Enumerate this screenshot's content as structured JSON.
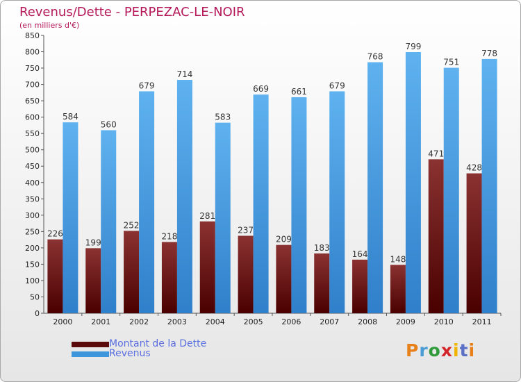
{
  "header": {
    "title": "Revenus/Dette - PERPEZAC-LE-NOIR",
    "subtitle": "(en milliers d'€)"
  },
  "legend": {
    "debt_label": "Montant de la Dette",
    "revenue_label": "Revenus"
  },
  "logo": {
    "text": "Proxiti",
    "letter_colors": [
      "#e8801a",
      "#4b9bd4",
      "#2f9b3a",
      "#d3252a",
      "#f0b400",
      "#5b6fc7",
      "#e8801a"
    ]
  },
  "colors": {
    "debt_top": "#8b3232",
    "debt_bottom": "#4a0000",
    "revenue_top": "#5fb2ef",
    "revenue_bottom": "#2f7fca",
    "axis_text": "#222222",
    "value_text": "#333333"
  },
  "chart_data": {
    "type": "bar",
    "title": "Revenus/Dette - PERPEZAC-LE-NOIR",
    "subtitle": "(en milliers d'€)",
    "categories": [
      "2000",
      "2001",
      "2002",
      "2003",
      "2004",
      "2005",
      "2006",
      "2007",
      "2008",
      "2009",
      "2010",
      "2011"
    ],
    "series": [
      {
        "name": "Montant de la Dette",
        "values": [
          226,
          199,
          252,
          218,
          281,
          237,
          209,
          183,
          164,
          148,
          471,
          428
        ]
      },
      {
        "name": "Revenus",
        "values": [
          584,
          560,
          679,
          714,
          583,
          669,
          661,
          679,
          768,
          799,
          751,
          778
        ]
      }
    ],
    "ylim": [
      0,
      850
    ],
    "ytick_step": 50,
    "grid": false,
    "legend_position": "bottom-left"
  }
}
